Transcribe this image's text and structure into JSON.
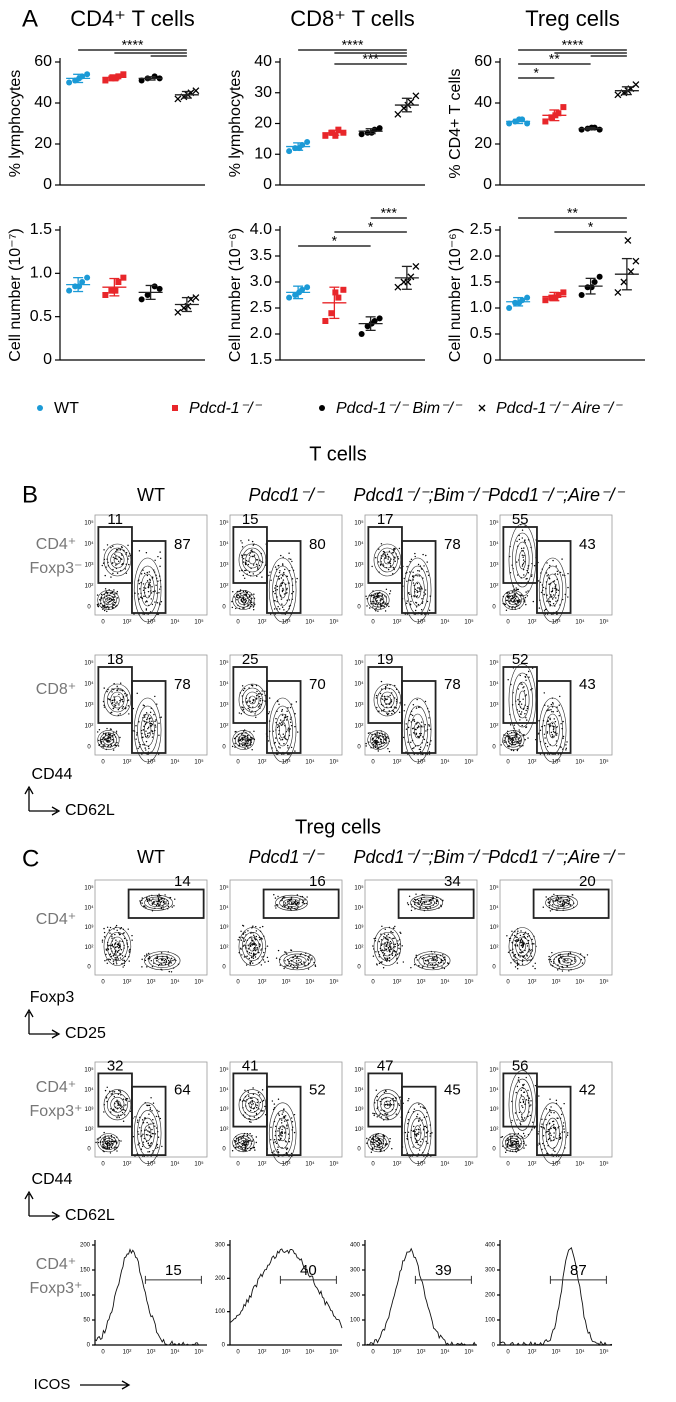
{
  "panel_labels": [
    "A",
    "B",
    "C"
  ],
  "legend": [
    {
      "name": "WT",
      "color": "#1b9ad6",
      "marker": "circle"
    },
    {
      "name": "Pdcd-1⁻/⁻",
      "color": "#e8262a",
      "marker": "square"
    },
    {
      "name": "Pdcd-1⁻/⁻ Bim⁻/⁻",
      "color": "#000000",
      "marker": "circle"
    },
    {
      "name": "Pdcd-1⁻/⁻ Aire⁻/⁻",
      "color": "#000000",
      "marker": "x"
    }
  ],
  "chart_data": [
    {
      "type": "dot",
      "title": "CD4⁺ T cells",
      "y_label": "% lymphocytes",
      "ylim": [
        0,
        60
      ],
      "yticks": [
        0,
        20,
        40,
        60
      ],
      "series": [
        {
          "values": [
            50,
            51,
            53,
            54,
            52
          ],
          "mean": 52,
          "sd": 2
        },
        {
          "values": [
            51,
            52,
            53,
            54,
            52
          ],
          "mean": 52.5,
          "sd": 1.2
        },
        {
          "values": [
            51,
            52,
            53,
            52
          ],
          "mean": 52,
          "sd": 0.8
        },
        {
          "values": [
            42,
            43,
            45,
            46,
            44
          ],
          "mean": 44,
          "sd": 1.6
        }
      ],
      "significance": [
        {
          "label": "****",
          "from": [
            0,
            1,
            2
          ],
          "to": 3
        }
      ]
    },
    {
      "type": "dot",
      "title": "CD8⁺ T cells",
      "y_label": "% lymphocytes",
      "ylim": [
        0,
        40
      ],
      "yticks": [
        0,
        10,
        20,
        30,
        40
      ],
      "series": [
        {
          "values": [
            11,
            12,
            13,
            14,
            12
          ],
          "mean": 12.5,
          "sd": 1.2
        },
        {
          "values": [
            16,
            17,
            18,
            17,
            16
          ],
          "mean": 17,
          "sd": 0.8
        },
        {
          "values": [
            16.5,
            17,
            18,
            18.5,
            17
          ],
          "mean": 17.5,
          "sd": 0.8
        },
        {
          "values": [
            23,
            25,
            27,
            29,
            26
          ],
          "mean": 26,
          "sd": 2.2
        }
      ],
      "significance": [
        {
          "label": "****",
          "from": [
            0,
            1,
            2
          ],
          "to": 3
        },
        {
          "label": "***",
          "from": [
            1
          ],
          "to": 3
        }
      ]
    },
    {
      "type": "dot",
      "title": "Treg cells",
      "y_label": "% CD4+ T cells",
      "ylim": [
        0,
        60
      ],
      "yticks": [
        0,
        20,
        40,
        60
      ],
      "series": [
        {
          "values": [
            30,
            31,
            32,
            30,
            32
          ],
          "mean": 31,
          "sd": 1
        },
        {
          "values": [
            31,
            33,
            35,
            38,
            34
          ],
          "mean": 34,
          "sd": 2.6
        },
        {
          "values": [
            27,
            27.5,
            28,
            27,
            28
          ],
          "mean": 27.5,
          "sd": 0.5
        },
        {
          "values": [
            44,
            45,
            47,
            49,
            46
          ],
          "mean": 46,
          "sd": 1.9
        }
      ],
      "significance": [
        {
          "label": "****",
          "from": [
            0,
            1,
            2
          ],
          "to": 3
        },
        {
          "label": "**",
          "from": [
            0
          ],
          "to": 2
        },
        {
          "label": "*",
          "from": [
            0
          ],
          "to": 1
        }
      ]
    },
    {
      "type": "dot",
      "title": null,
      "y_label": "Cell number (10⁻⁷)",
      "ylim": [
        0,
        1.5
      ],
      "yticks": [
        0,
        0.5,
        {
          "value": 1,
          "label": "1.0"
        },
        1.5
      ],
      "series": [
        {
          "values": [
            0.8,
            0.85,
            0.9,
            0.95,
            0.85
          ],
          "mean": 0.87,
          "sd": 0.08
        },
        {
          "values": [
            0.75,
            0.8,
            0.9,
            0.95,
            0.8
          ],
          "mean": 0.84,
          "sd": 0.1
        },
        {
          "values": [
            0.7,
            0.75,
            0.85,
            0.82
          ],
          "mean": 0.78,
          "sd": 0.08
        },
        {
          "values": [
            0.55,
            0.6,
            0.7,
            0.72,
            0.62
          ],
          "mean": 0.64,
          "sd": 0.08
        }
      ],
      "significance": []
    },
    {
      "type": "dot",
      "title": null,
      "y_label": "Cell number (10⁻⁶)",
      "ylim": [
        1.5,
        4
      ],
      "yticks": [
        1.5,
        {
          "value": 2,
          "label": "2.0"
        },
        2.5,
        {
          "value": 3,
          "label": "3.0"
        },
        3.5,
        {
          "value": 4,
          "label": "4.0"
        }
      ],
      "series": [
        {
          "values": [
            2.7,
            2.75,
            2.85,
            2.9,
            2.8
          ],
          "mean": 2.8,
          "sd": 0.12
        },
        {
          "values": [
            2.25,
            2.4,
            2.7,
            2.85,
            2.8
          ],
          "mean": 2.6,
          "sd": 0.3
        },
        {
          "values": [
            2,
            2.15,
            2.25,
            2.3,
            2.2
          ],
          "mean": 2.2,
          "sd": 0.13
        },
        {
          "values": [
            2.9,
            3,
            3.1,
            3.3,
            3
          ],
          "mean": 3.08,
          "sd": 0.22
        }
      ],
      "significance": [
        {
          "label": "***",
          "from": [
            2
          ],
          "to": 3
        },
        {
          "label": "*",
          "from": [
            1
          ],
          "to": 3
        },
        {
          "label": "*",
          "from": [
            0
          ],
          "to": 2
        }
      ]
    },
    {
      "type": "dot",
      "title": null,
      "y_label": "Cell number (10⁻⁶)",
      "ylim": [
        0,
        2.5
      ],
      "yticks": [
        0,
        0.5,
        {
          "value": 1,
          "label": "1.0"
        },
        1.5,
        {
          "value": 2,
          "label": "2.0"
        },
        2.5
      ],
      "series": [
        {
          "values": [
            1,
            1.1,
            1.15,
            1.2,
            1.1
          ],
          "mean": 1.12,
          "sd": 0.08
        },
        {
          "values": [
            1.15,
            1.2,
            1.25,
            1.3,
            1.2
          ],
          "mean": 1.22,
          "sd": 0.08
        },
        {
          "values": [
            1.25,
            1.4,
            1.5,
            1.6,
            1.4
          ],
          "mean": 1.42,
          "sd": 0.15
        },
        {
          "values": [
            1.3,
            1.5,
            1.7,
            1.9,
            2.3
          ],
          "mean": 1.65,
          "sd": 0.3
        }
      ],
      "significance": [
        {
          "label": "**",
          "from": [
            0
          ],
          "to": 3
        },
        {
          "label": "*",
          "from": [
            1
          ],
          "to": 3
        }
      ]
    }
  ],
  "genotypes": [
    "WT",
    "Pdcd1⁻/⁻",
    "Pdcd1⁻/⁻;Bim⁻/⁻",
    "Pdcd1⁻/⁻;Aire⁻/⁻"
  ],
  "flow_ticks": [
    "0",
    "10²",
    "10³",
    "10⁴",
    "10⁵"
  ],
  "t_cells": {
    "title": "T cells",
    "y_axis": "CD44",
    "x_axis": "CD62L",
    "rows": [
      {
        "label": [
          "CD4⁺",
          "Foxp3⁻"
        ],
        "gates": [
          [
            11,
            87
          ],
          [
            15,
            80
          ],
          [
            17,
            78
          ],
          [
            55,
            43
          ]
        ]
      },
      {
        "label": [
          "CD8⁺"
        ],
        "gates": [
          [
            18,
            78
          ],
          [
            25,
            70
          ],
          [
            19,
            78
          ],
          [
            52,
            43
          ]
        ]
      }
    ]
  },
  "treg_cells": {
    "title": "Treg cells",
    "foxp3_row": {
      "label": [
        "CD4⁺"
      ],
      "gates": [
        14,
        16,
        34,
        20
      ],
      "y_axis": "Foxp3",
      "x_axis": "CD25"
    },
    "cd44_row": {
      "label": [
        "CD4⁺",
        "Foxp3⁺"
      ],
      "gates": [
        [
          32,
          64
        ],
        [
          41,
          52
        ],
        [
          47,
          45
        ],
        [
          56,
          42
        ]
      ],
      "y_axis": "CD44",
      "x_axis": "CD62L"
    },
    "icos_row": {
      "label": [
        "CD4⁺",
        "Foxp3⁺"
      ],
      "gates": [
        15,
        40,
        39,
        87
      ],
      "x_axis": "ICOS",
      "yticks": [
        [
          0,
          50,
          100,
          150,
          200
        ],
        [
          0,
          100,
          200,
          300
        ],
        [
          0,
          100,
          200,
          300,
          400
        ],
        [
          0,
          100,
          200,
          300,
          400
        ]
      ]
    }
  }
}
